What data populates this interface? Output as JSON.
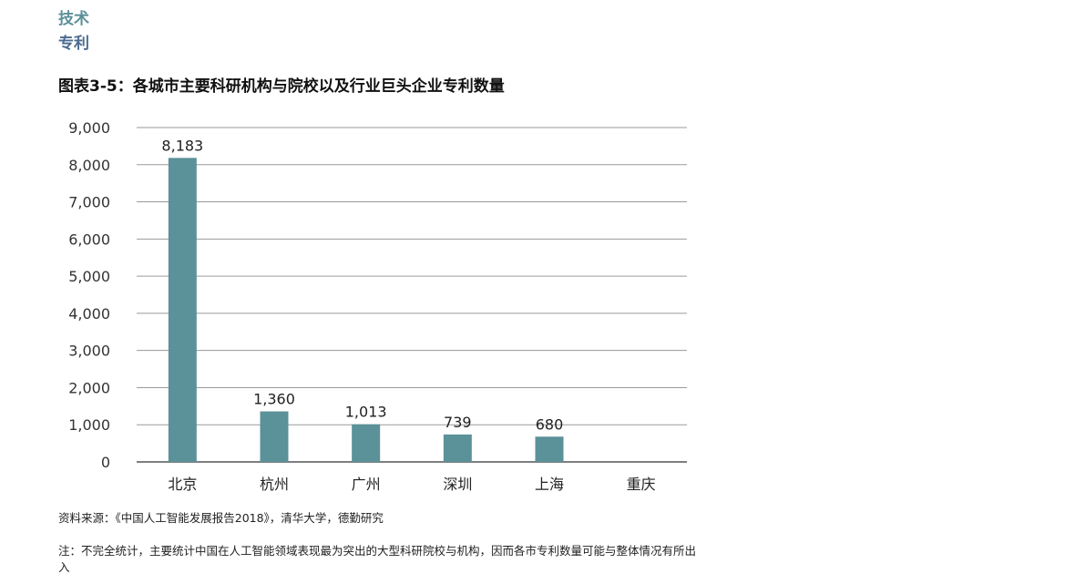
{
  "header": {
    "section_primary": "技术",
    "section_secondary": "专利"
  },
  "chart_data": {
    "type": "bar",
    "title": "图表3-5：各城市主要科研机构与院校以及行业巨头企业专利数量",
    "categories": [
      "北京",
      "杭州",
      "广州",
      "深圳",
      "上海",
      "重庆"
    ],
    "values": [
      8183,
      1360,
      1013,
      739,
      680,
      null
    ],
    "data_labels": [
      "8,183",
      "1,360",
      "1,013",
      "739",
      "680",
      ""
    ],
    "ylim": [
      0,
      9000
    ],
    "yticks": [
      0,
      1000,
      2000,
      3000,
      4000,
      5000,
      6000,
      7000,
      8000,
      9000
    ],
    "ytick_labels": [
      "0",
      "1,000",
      "2,000",
      "3,000",
      "4,000",
      "5,000",
      "6,000",
      "7,000",
      "8,000",
      "9,000"
    ],
    "grid": true,
    "bar_color": "#5b9199"
  },
  "footer": {
    "source": "资料来源：《中国人工智能发展报告2018》，清华大学，德勤研究",
    "note": "注：不完全统计，主要统计中国在人工智能领域表现最为突出的大型科研院校与机构，因而各市专利数量可能与整体情况有所出入"
  }
}
